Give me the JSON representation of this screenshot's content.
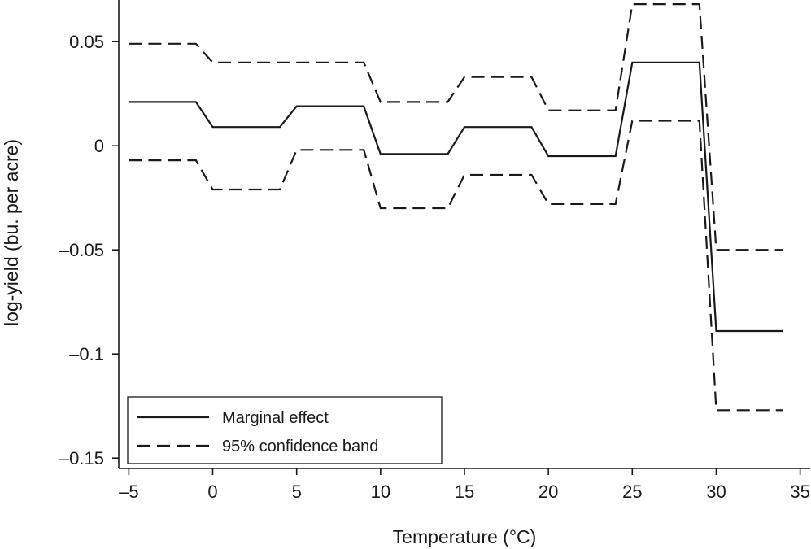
{
  "chart_data": {
    "type": "line",
    "title": "",
    "xlabel": "Temperature (°C)",
    "ylabel": "log-yield (bu. per acre)",
    "xlim": [
      -5.6,
      35.6
    ],
    "ylim": [
      -0.155,
      0.07
    ],
    "x_ticks": [
      -5,
      0,
      5,
      10,
      15,
      20,
      25,
      30,
      35
    ],
    "x_tick_labels": [
      "–5",
      "0",
      "5",
      "10",
      "15",
      "20",
      "25",
      "30",
      "35"
    ],
    "y_ticks": [
      0.05,
      0,
      -0.05,
      -0.1,
      -0.15
    ],
    "y_tick_labels": [
      "0.05",
      "0",
      "–0.05",
      "–0.1",
      "–0.15"
    ],
    "grid": false,
    "legend_position": "bottom-left",
    "series": [
      {
        "name": "Marginal effect",
        "style": "solid",
        "color": "#1a1a1a",
        "points": [
          [
            -5,
            0.021
          ],
          [
            -1,
            0.021
          ],
          [
            0,
            0.009
          ],
          [
            4,
            0.009
          ],
          [
            5,
            0.019
          ],
          [
            9,
            0.019
          ],
          [
            10,
            -0.004
          ],
          [
            14,
            -0.004
          ],
          [
            15,
            0.009
          ],
          [
            19,
            0.009
          ],
          [
            20,
            -0.005
          ],
          [
            24,
            -0.005
          ],
          [
            25,
            0.04
          ],
          [
            29,
            0.04
          ],
          [
            30,
            -0.089
          ],
          [
            34,
            -0.089
          ]
        ]
      },
      {
        "name": "95% confidence band",
        "style": "dashed",
        "color": "#1a1a1a",
        "points": [
          [
            -5,
            0.049
          ],
          [
            -1,
            0.049
          ],
          [
            0,
            0.04
          ],
          [
            4,
            0.04
          ],
          [
            5,
            0.04
          ],
          [
            9,
            0.04
          ],
          [
            10,
            0.021
          ],
          [
            14,
            0.021
          ],
          [
            15,
            0.033
          ],
          [
            19,
            0.033
          ],
          [
            20,
            0.017
          ],
          [
            24,
            0.017
          ],
          [
            25,
            0.068
          ],
          [
            29,
            0.068
          ],
          [
            30,
            -0.05
          ],
          [
            34,
            -0.05
          ]
        ]
      },
      {
        "name": "",
        "style": "dashed",
        "color": "#1a1a1a",
        "points": [
          [
            -5,
            -0.007
          ],
          [
            -1,
            -0.007
          ],
          [
            0,
            -0.021
          ],
          [
            4,
            -0.021
          ],
          [
            5,
            -0.002
          ],
          [
            9,
            -0.002
          ],
          [
            10,
            -0.03
          ],
          [
            14,
            -0.03
          ],
          [
            15,
            -0.014
          ],
          [
            19,
            -0.014
          ],
          [
            20,
            -0.028
          ],
          [
            24,
            -0.028
          ],
          [
            25,
            0.012
          ],
          [
            29,
            0.012
          ],
          [
            30,
            -0.127
          ],
          [
            34,
            -0.127
          ]
        ]
      }
    ],
    "legend": [
      {
        "label": "Marginal effect",
        "style": "solid"
      },
      {
        "label": "95% confidence band",
        "style": "dashed"
      }
    ]
  }
}
